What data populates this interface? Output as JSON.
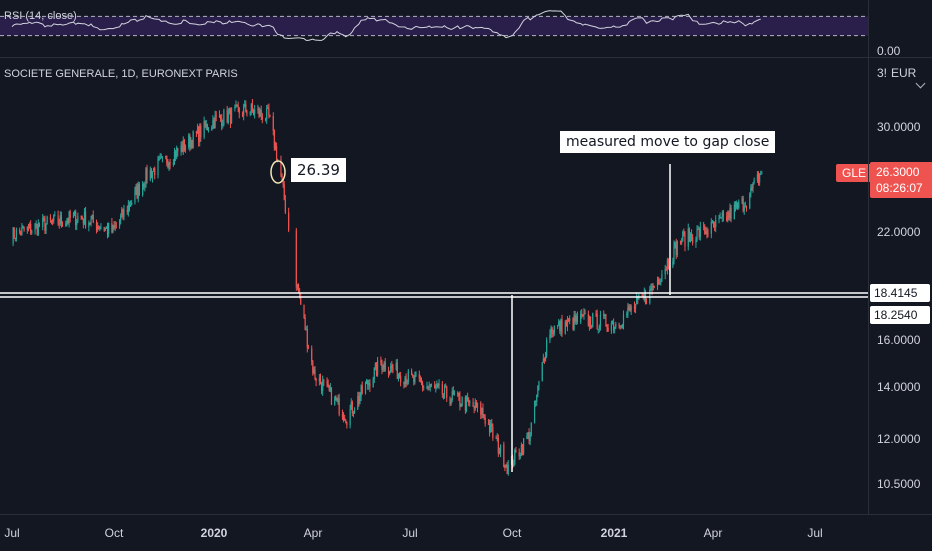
{
  "rsi": {
    "legend": "RSI (14, close)",
    "axis_labels": [
      "0.00"
    ],
    "upper_band": 70,
    "lower_band": 30,
    "colors": {
      "line": "#d1d4dc",
      "band": "#2a1e4a",
      "dashed": "#b2b5be"
    }
  },
  "main": {
    "legend": "SOCIETE GENERALE, 1D, EURONEXT PARIS",
    "currency": "EUR",
    "scale_partial_label": "3!",
    "symbol_tag": "GLE",
    "last_price": "26.3000",
    "countdown": "08:26:07",
    "price_axis_labels": [
      "30.0000",
      "22.0000",
      "16.0000",
      "14.0000",
      "12.0000",
      "10.5000"
    ],
    "horizontal_levels": [
      "18.4145",
      "18.2540"
    ],
    "annotation_price": "26.39",
    "annotation_text": "measured move to gap close",
    "colors": {
      "up": "#26a69a",
      "down": "#ef5350",
      "line": "#ffffff",
      "bg": "#131722"
    }
  },
  "time_axis": {
    "labels": [
      {
        "text": "Jul",
        "bold": false
      },
      {
        "text": "Oct",
        "bold": false
      },
      {
        "text": "2020",
        "bold": true
      },
      {
        "text": "Apr",
        "bold": false
      },
      {
        "text": "Jul",
        "bold": false
      },
      {
        "text": "Oct",
        "bold": false
      },
      {
        "text": "2021",
        "bold": true
      },
      {
        "text": "Apr",
        "bold": false
      },
      {
        "text": "Jul",
        "bold": false
      }
    ]
  },
  "chart_data": {
    "type": "line",
    "title": "SOCIETE GENERALE, 1D, EURONEXT PARIS",
    "xlabel": "",
    "ylabel": "EUR",
    "ylim": [
      9.8,
      36
    ],
    "scale": "log",
    "x": [
      "2019-07-01",
      "2019-08-01",
      "2019-09-01",
      "2019-10-01",
      "2019-11-01",
      "2019-12-01",
      "2020-01-01",
      "2020-02-01",
      "2020-02-20",
      "2020-03-01",
      "2020-03-16",
      "2020-04-01",
      "2020-05-01",
      "2020-06-01",
      "2020-07-01",
      "2020-08-01",
      "2020-09-01",
      "2020-09-25",
      "2020-10-15",
      "2020-11-01",
      "2020-12-01",
      "2021-01-01",
      "2021-02-01",
      "2021-03-01",
      "2021-04-01",
      "2021-05-01",
      "2021-05-14"
    ],
    "series": [
      {
        "values": [
          21.8,
          22.5,
          23.0,
          22.0,
          26.0,
          28.0,
          30.5,
          31.5,
          30.8,
          26.39,
          19.0,
          14.5,
          12.8,
          15.0,
          14.2,
          13.6,
          13.0,
          11.0,
          12.2,
          16.5,
          17.0,
          16.8,
          18.4,
          21.5,
          22.3,
          24.2,
          26.3
        ]
      }
    ],
    "levels": [
      18.4145,
      18.254
    ],
    "annotations": [
      "26.39",
      "measured move to gap close"
    ],
    "x_ticks": [
      "Jul",
      "Oct",
      "2020",
      "Apr",
      "Jul",
      "Oct",
      "2021",
      "Apr",
      "Jul"
    ],
    "y_ticks": [
      30,
      22,
      16,
      14,
      12,
      10.5
    ],
    "grid": false
  }
}
